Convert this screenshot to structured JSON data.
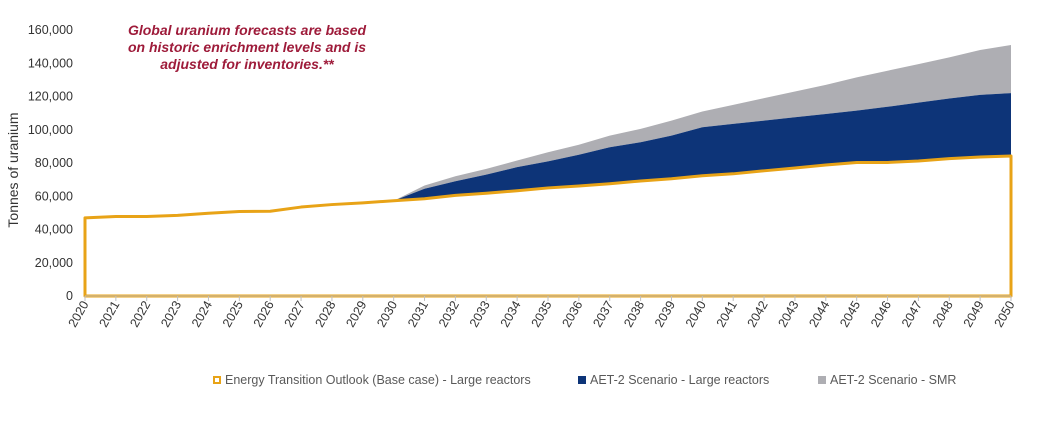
{
  "chart_data": {
    "type": "area",
    "title": "",
    "annotation": [
      "Global uranium forecasts are based",
      "on historic enrichment levels and is",
      "adjusted for inventories.**"
    ],
    "xlabel": "",
    "ylabel": "Tonnes of uranium",
    "ylim": [
      0,
      160000
    ],
    "yticks": [
      0,
      20000,
      40000,
      60000,
      80000,
      100000,
      120000,
      140000,
      160000
    ],
    "ytick_labels": [
      "0",
      "20,000",
      "40,000",
      "60,000",
      "80,000",
      "100,000",
      "120,000",
      "140,000",
      "160,000"
    ],
    "categories": [
      "2020",
      "2021",
      "2022",
      "2023",
      "2024",
      "2025",
      "2026",
      "2027",
      "2028",
      "2029",
      "2030",
      "2031",
      "2032",
      "2033",
      "2034",
      "2035",
      "2036",
      "2037",
      "2038",
      "2039",
      "2040",
      "2041",
      "2042",
      "2043",
      "2044",
      "2045",
      "2046",
      "2047",
      "2048",
      "2049",
      "2050"
    ],
    "series": [
      {
        "name": "Energy Transition Outlook (Base case) - Large reactors",
        "style": "outline",
        "color": "#E8A317",
        "values": [
          47000,
          47800,
          47800,
          48500,
          49800,
          50800,
          51000,
          53500,
          55000,
          56000,
          57300,
          58500,
          60500,
          61800,
          63300,
          65000,
          66200,
          67500,
          69200,
          70500,
          72300,
          73500,
          75300,
          77000,
          78800,
          80300,
          80300,
          81200,
          82600,
          83600,
          84200
        ]
      },
      {
        "name": "AET-2 Scenario - Large reactors",
        "style": "fill",
        "color": "#0D3478",
        "values": [
          47000,
          47800,
          47800,
          48500,
          49800,
          50800,
          51000,
          53500,
          55000,
          56000,
          57300,
          64500,
          69000,
          73000,
          77500,
          81000,
          85000,
          89500,
          92500,
          96500,
          101500,
          103500,
          105500,
          107500,
          109500,
          111500,
          113800,
          116300,
          118800,
          121000,
          122000
        ]
      },
      {
        "name": "AET-2 Scenario - SMR",
        "style": "fill",
        "color": "#AEAEB3",
        "values": [
          47000,
          47800,
          47800,
          48500,
          49800,
          50800,
          51000,
          53500,
          55000,
          56000,
          57300,
          66500,
          72000,
          76500,
          81500,
          86500,
          91000,
          96500,
          100500,
          105500,
          111000,
          115000,
          119000,
          123000,
          127000,
          131500,
          135500,
          139500,
          143500,
          148000,
          151000
        ]
      }
    ]
  },
  "colors": {
    "annotation": "#9E1B3A",
    "axis": "#BFBFBF",
    "text": "#333333"
  }
}
